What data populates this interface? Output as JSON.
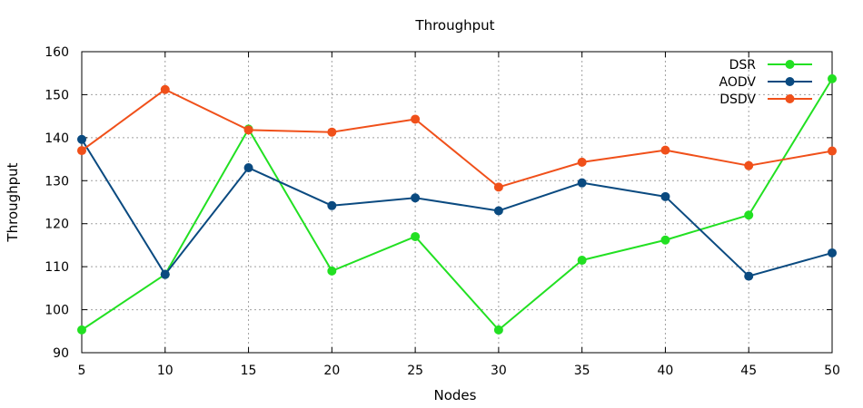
{
  "chart_data": {
    "type": "line",
    "title": "Throughput",
    "xlabel": "Nodes",
    "ylabel": "Throughput",
    "x": [
      5,
      10,
      15,
      20,
      25,
      30,
      35,
      40,
      45,
      50
    ],
    "xlim": [
      5,
      50
    ],
    "ylim": [
      90,
      160
    ],
    "xticks": [
      5,
      10,
      15,
      20,
      25,
      30,
      35,
      40,
      45,
      50
    ],
    "yticks": [
      90,
      100,
      110,
      120,
      130,
      140,
      150,
      160
    ],
    "grid": true,
    "legend_position": "top-right",
    "series": [
      {
        "name": "DSR",
        "color": "#22e022",
        "values": [
          95.3,
          108.2,
          142.0,
          109.0,
          117.0,
          95.3,
          111.5,
          116.2,
          122.0,
          153.7
        ]
      },
      {
        "name": "AODV",
        "color": "#0a4a80",
        "values": [
          139.6,
          108.2,
          133.0,
          124.2,
          126.0,
          123.0,
          129.5,
          126.3,
          107.8,
          113.2
        ]
      },
      {
        "name": "DSDV",
        "color": "#f0501a",
        "values": [
          137.0,
          151.2,
          141.8,
          141.3,
          144.3,
          128.5,
          134.3,
          137.1,
          133.5,
          136.9
        ]
      }
    ]
  }
}
